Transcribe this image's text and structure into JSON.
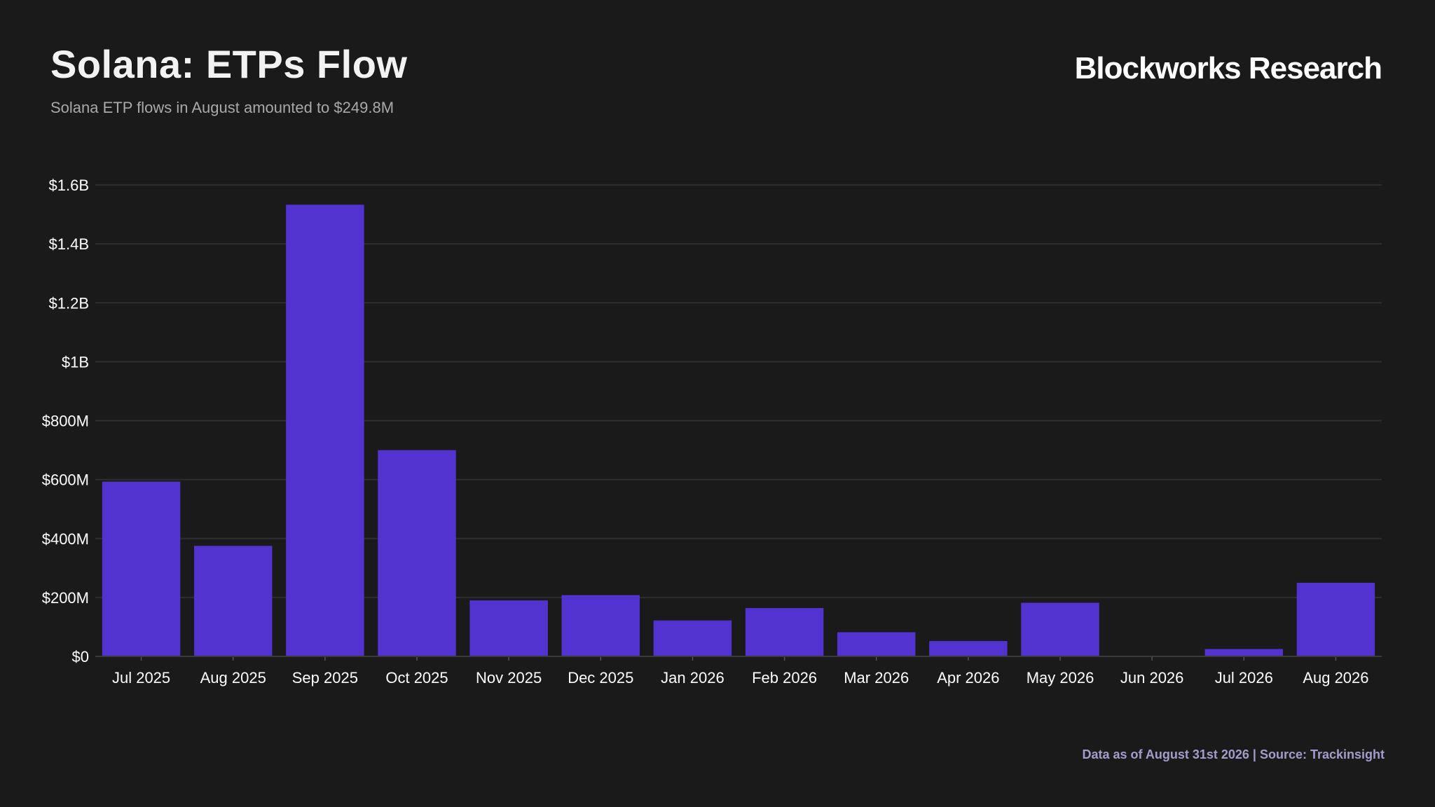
{
  "header": {
    "title": "Solana: ETPs Flow",
    "subtitle": "Solana ETP flows in August amounted to $249.8M",
    "brand": "Blockworks Research"
  },
  "footer": {
    "source": "Data as of August 31st 2026 | Source: Trackinsight"
  },
  "colors": {
    "background": "#1a1a1a",
    "bar": "#5333cf",
    "grid": "#2e2e2e",
    "footer_text": "#a59ccc"
  },
  "chart_data": {
    "type": "bar",
    "title": "Solana: ETPs Flow",
    "subtitle": "Solana ETP flows in August amounted to $249.8M",
    "xlabel": "",
    "ylabel": "",
    "categories": [
      "Jul 2025",
      "Aug 2025",
      "Sep 2025",
      "Oct 2025",
      "Nov 2025",
      "Dec 2025",
      "Jan 2026",
      "Feb 2026",
      "Mar 2026",
      "Apr 2026",
      "May 2026",
      "Jun 2026",
      "Jul 2026",
      "Aug 2026"
    ],
    "values": [
      593,
      375,
      1533,
      700,
      190,
      208,
      122,
      164,
      82,
      52,
      182,
      2,
      25,
      249.8
    ],
    "value_unit": "USD millions",
    "ylim": [
      0,
      1600
    ],
    "yticks": [
      0,
      200,
      400,
      600,
      800,
      1000,
      1200,
      1400,
      1600
    ],
    "ytick_labels": [
      "$0",
      "$200M",
      "$400M",
      "$600M",
      "$800M",
      "$1B",
      "$1.2B",
      "$1.4B",
      "$1.6B"
    ],
    "grid": true,
    "legend": "none"
  }
}
